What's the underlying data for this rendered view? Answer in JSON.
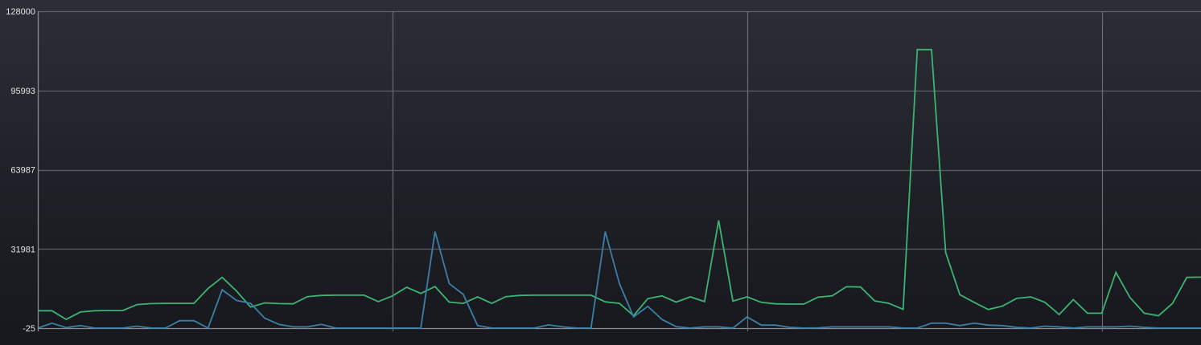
{
  "chart_data": {
    "type": "line",
    "title": "",
    "xlabel": "",
    "ylabel": "",
    "ylim": [
      -25,
      128000
    ],
    "y_ticks": [
      "128000",
      "95993",
      "63987",
      "31981",
      "-25"
    ],
    "y_tick_values": [
      128000,
      95993,
      63987,
      31981,
      -25
    ],
    "x_grid_positions": [
      0,
      25,
      50,
      75
    ],
    "grid": true,
    "legend": "none",
    "x": [
      0,
      1,
      2,
      3,
      4,
      5,
      6,
      7,
      8,
      9,
      10,
      11,
      12,
      13,
      14,
      15,
      16,
      17,
      18,
      19,
      20,
      21,
      22,
      23,
      24,
      25,
      26,
      27,
      28,
      29,
      30,
      31,
      32,
      33,
      34,
      35,
      36,
      37,
      38,
      39,
      40,
      41,
      42,
      43,
      44,
      45,
      46,
      47,
      48,
      49,
      50,
      51,
      52,
      53,
      54,
      55,
      56,
      57,
      58,
      59,
      60,
      61,
      62,
      63,
      64,
      65,
      66,
      67,
      68,
      69,
      70,
      71,
      72,
      73,
      74,
      75,
      76,
      77,
      78,
      79,
      80,
      81,
      82
    ],
    "series": [
      {
        "color": "#3cb371",
        "values": [
          7000,
          7000,
          3500,
          6500,
          7000,
          7100,
          7100,
          9500,
          9900,
          10000,
          10000,
          10000,
          16000,
          20500,
          15000,
          8500,
          10200,
          9900,
          9800,
          12700,
          13200,
          13300,
          13300,
          13300,
          10700,
          13000,
          16500,
          14000,
          16800,
          10500,
          10000,
          12600,
          10000,
          12700,
          13200,
          13300,
          13300,
          13300,
          13300,
          13300,
          10600,
          10000,
          5000,
          11900,
          13000,
          10500,
          12600,
          10700,
          43500,
          10900,
          12600,
          10400,
          9800,
          9700,
          9700,
          12500,
          13000,
          16700,
          16600,
          11000,
          10000,
          7600,
          112500,
          112500,
          30500,
          13500,
          10400,
          7500,
          8900,
          12000,
          12600,
          10400,
          5500,
          11500,
          6000,
          6000,
          22500,
          12300,
          6000,
          5000,
          10000,
          20500,
          20600
        ]
      },
      {
        "color": "#3b7fa6",
        "values": [
          0,
          2000,
          200,
          1000,
          0,
          0,
          0,
          800,
          0,
          0,
          3000,
          3000,
          0,
          15500,
          11200,
          10000,
          4000,
          1500,
          500,
          500,
          1500,
          0,
          0,
          0,
          0,
          0,
          0,
          0,
          39000,
          18000,
          13600,
          1000,
          0,
          0,
          0,
          0,
          1300,
          500,
          0,
          0,
          39000,
          18000,
          4500,
          8800,
          3500,
          600,
          0,
          500,
          500,
          0,
          4500,
          1200,
          1200,
          300,
          0,
          100,
          500,
          500,
          500,
          500,
          500,
          0,
          0,
          2000,
          2000,
          1000,
          2000,
          1200,
          1000,
          300,
          0,
          800,
          500,
          0,
          500,
          500,
          500,
          800,
          300,
          0,
          0,
          0,
          0
        ]
      }
    ]
  }
}
